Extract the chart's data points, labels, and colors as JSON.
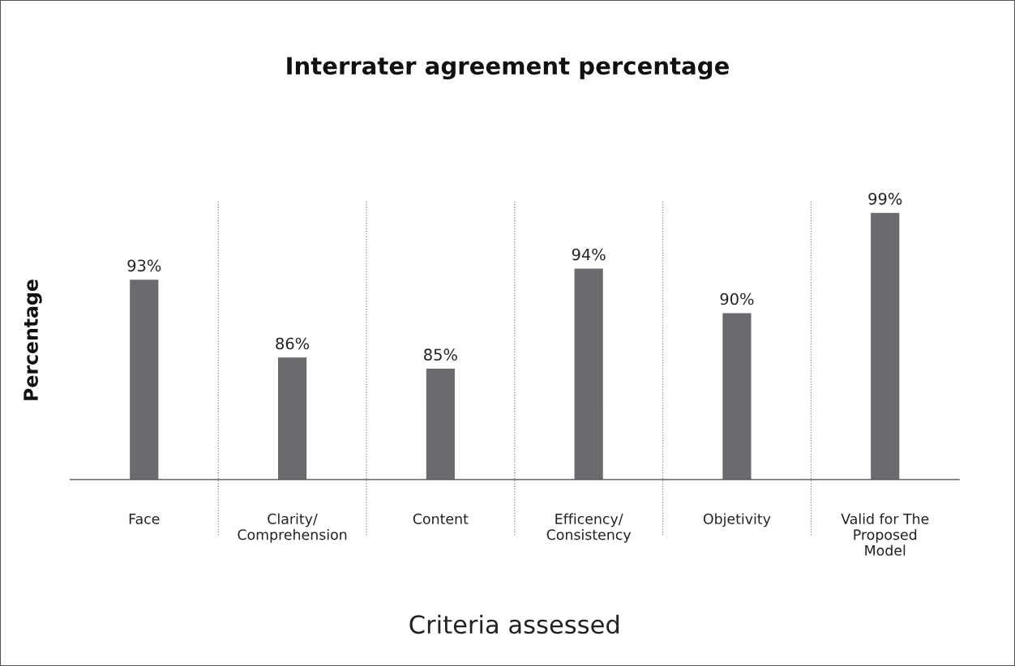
{
  "chart_data": {
    "type": "bar",
    "title": "Interrater agreement percentage",
    "xlabel": "Criteria assessed",
    "ylabel": "Percentage",
    "categories": [
      "Face",
      "Clarity/\nComprehension",
      "Content",
      "Efficency/\nConsistency",
      "Objetivity",
      "Valid for The\nProposed\nModel"
    ],
    "values": [
      93,
      86,
      85,
      94,
      90,
      99
    ],
    "value_labels": [
      "93%",
      "86%",
      "85%",
      "94%",
      "90%",
      "99%"
    ],
    "color": "#6a6b6e",
    "ylim": [
      75,
      100
    ],
    "grid": "x",
    "tick_labels": "x"
  }
}
